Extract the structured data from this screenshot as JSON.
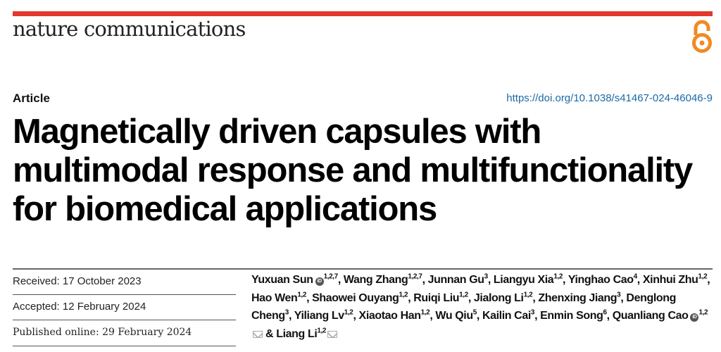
{
  "header": {
    "journal": "nature communications",
    "open_access_icon": "open-access-lock-icon",
    "accent_color": "#e2382d",
    "oa_color": "#f08a24"
  },
  "article": {
    "type": "Article",
    "doi": "https://doi.org/10.1038/s41467-024-46046-9",
    "title_lines": [
      "Magnetically driven capsules with",
      "multimodal response and multifunctionality",
      "for biomedical applications"
    ]
  },
  "dates": {
    "received": "Received: 17 October 2023",
    "accepted": "Accepted: 12 February 2024",
    "published": "Published online: 29 February 2024"
  },
  "authors": [
    {
      "name": "Yuxuan Sun",
      "aff": "1,2,7",
      "orcid": true
    },
    {
      "name": "Wang Zhang",
      "aff": "1,2,7"
    },
    {
      "name": "Junnan Gu",
      "aff": "3"
    },
    {
      "name": "Liangyu Xia",
      "aff": "1,2"
    },
    {
      "name": "Yinghao Cao",
      "aff": "4"
    },
    {
      "name": "Xinhui Zhu",
      "aff": "1,2"
    },
    {
      "name": "Hao Wen",
      "aff": "1,2"
    },
    {
      "name": "Shaowei Ouyang",
      "aff": "1,2"
    },
    {
      "name": "Ruiqi Liu",
      "aff": "1,2"
    },
    {
      "name": "Jialong Li",
      "aff": "1,2"
    },
    {
      "name": "Zhenxing Jiang",
      "aff": "3"
    },
    {
      "name": "Denglong Cheng",
      "aff": "3"
    },
    {
      "name": "Yiliang Lv",
      "aff": "1,2"
    },
    {
      "name": "Xiaotao Han",
      "aff": "1,2"
    },
    {
      "name": "Wu Qiu",
      "aff": "5"
    },
    {
      "name": "Kailin Cai",
      "aff": "3"
    },
    {
      "name": "Enmin Song",
      "aff": "6"
    },
    {
      "name": "Quanliang Cao",
      "aff": "1,2",
      "orcid": true,
      "corresponding": true
    },
    {
      "name": "Liang Li",
      "aff": "1,2",
      "corresponding": true
    }
  ],
  "author_separator": ", ",
  "author_last_joiner": " & "
}
